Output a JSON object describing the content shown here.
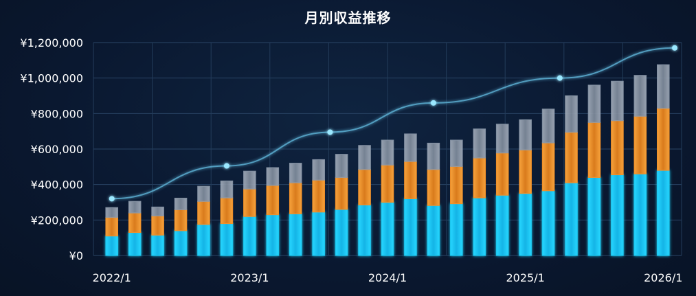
{
  "chart_data": {
    "type": "bar",
    "stacked": true,
    "title": "月別収益推移",
    "xlabel": "",
    "ylabel": "",
    "x_tick_labels": [
      "2022/1",
      "2023/1",
      "2024/1",
      "2025/1",
      "2026/1"
    ],
    "y_tick_labels": [
      "¥0",
      "¥200,000",
      "¥400,000",
      "¥600,000",
      "¥800,000",
      "¥1,000,000",
      "¥1,200,000"
    ],
    "ylim": [
      0,
      1200000
    ],
    "grid": true,
    "colors": {
      "bottom": "#1ec8f0",
      "middle": "#f0902a",
      "top": "#8d9aab",
      "line": "#5fb4d8",
      "marker": "#9be8ff"
    },
    "stack_series": [
      {
        "values": [
          110000,
          130000,
          115000,
          140000,
          175000,
          180000,
          220000,
          230000,
          235000,
          245000,
          260000,
          285000,
          300000,
          320000,
          282000,
          292000,
          325000,
          340000,
          350000,
          365000,
          410000,
          440000,
          455000,
          460000,
          480000
        ]
      },
      {
        "values": [
          105000,
          110000,
          108000,
          118000,
          130000,
          145000,
          155000,
          165000,
          175000,
          180000,
          180000,
          200000,
          210000,
          210000,
          203000,
          210000,
          225000,
          238000,
          245000,
          270000,
          285000,
          310000,
          305000,
          325000,
          350000
        ]
      },
      {
        "values": [
          55000,
          65000,
          50000,
          65000,
          85000,
          95000,
          100000,
          100000,
          110000,
          115000,
          130000,
          135000,
          140000,
          155000,
          148000,
          148000,
          163000,
          162000,
          170000,
          190000,
          205000,
          210000,
          222000,
          230000,
          245000
        ]
      }
    ],
    "line_series": {
      "x_index": [
        0,
        5,
        9.5,
        14,
        19.5,
        24.5
      ],
      "values": [
        320000,
        505000,
        695000,
        860000,
        1000000,
        1170000
      ]
    }
  }
}
